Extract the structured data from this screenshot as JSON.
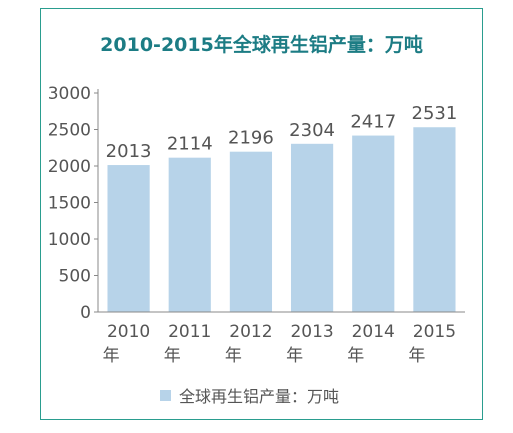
{
  "colors": {
    "frame": "#2a9d8f",
    "title": "#1c7c84",
    "bar": "#b7d3e9",
    "axis": "#888888",
    "text": "#555555"
  },
  "chart_data": {
    "type": "bar",
    "title": "2010-2015年全球再生铝产量：万吨",
    "categories": [
      "2010\n年",
      "2011\n年",
      "2012\n年",
      "2013\n年",
      "2014\n年",
      "2015\n年"
    ],
    "series": [
      {
        "name": "全球再生铝产量：万吨",
        "values": [
          2013,
          2114,
          2196,
          2304,
          2417,
          2531
        ]
      }
    ],
    "data_labels": [
      "2013",
      "2114",
      "2196",
      "2304",
      "2417",
      "2531"
    ],
    "yticks": [
      "0",
      "500",
      "1000",
      "1500",
      "2000",
      "2500",
      "3000"
    ],
    "ylim": [
      0,
      3000
    ],
    "grid": false,
    "legend_position": "bottom"
  }
}
